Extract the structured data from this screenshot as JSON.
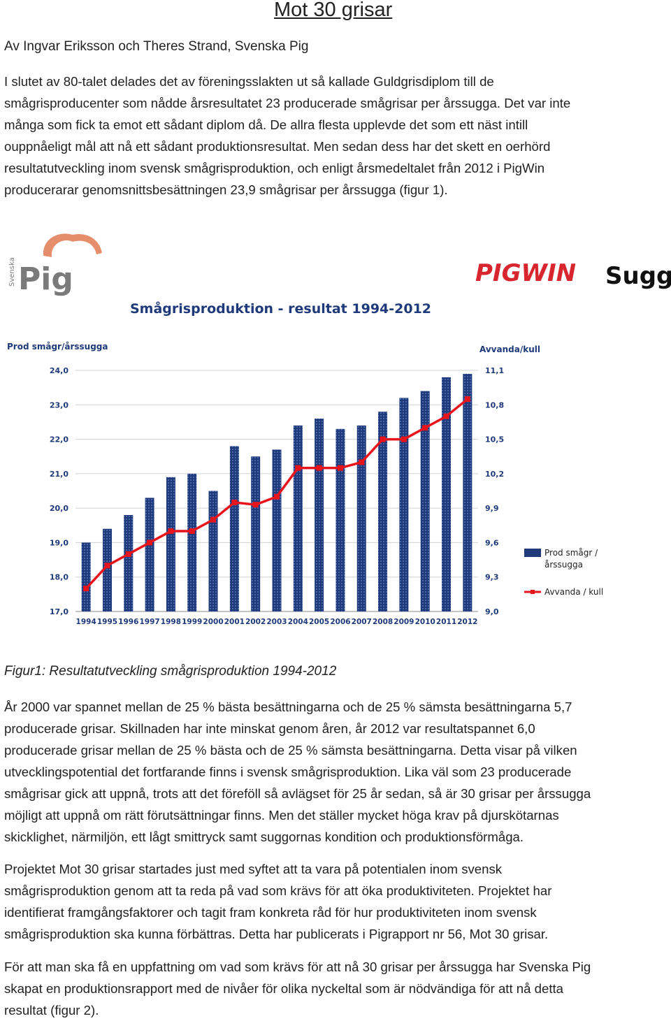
{
  "doc": {
    "title": "Mot 30 grisar",
    "authors": "Av Ingvar Eriksson och Theres Strand, Svenska Pig",
    "para1_lines": [
      "I slutet av 80-talet delades det av föreningsslakten ut så kallade Guldgrisdiplom till de",
      "smågrisproducenter som nådde årsresultatet 23 producerade smågrisar per årssugga. Det var inte",
      "många som fick ta emot ett sådant diplom då. De allra flesta upplevde det som ett näst intill",
      "ouppnåeligt mål att nå ett sådant produktionsresultat. Men sedan dess har det skett en oerhörd",
      "resultatutveckling inom svensk smågrisproduktion, och enligt årsmedeltalet från 2012 i PigWin",
      "producerarar genomsnittsbesättningen 23,9 smågrisar per årssugga (figur 1)."
    ],
    "caption": "Figur1: Resultatutveckling smågrisproduktion 1994-2012",
    "para2_lines": [
      "År 2000 var spannet mellan de 25 % bästa besättningarna och de 25 % sämsta besättningarna 5,7",
      "producerade grisar. Skillnaden har inte minskat genom åren, år 2012 var resultatspannet 6,0",
      "producerade grisar mellan de 25 % bästa och de 25 % sämsta besättningarna. Detta visar på vilken",
      "utvecklingspotential det fortfarande finns i svensk smågrisproduktion. Lika väl som 23 producerade",
      "smågrisar gick att uppnå, trots att det föreföll så avlägset för 25 år sedan, så är 30 grisar per årssugga",
      "möjligt att uppnå om rätt förutsättningar finns. Men det ställer mycket höga krav på djurskötarnas",
      "skicklighet, närmiljön, ett lågt smittryck samt suggornas kondition och produktionsförmåga."
    ],
    "para3_lines": [
      "Projektet Mot 30 grisar startades just med syftet att ta vara på potentialen inom svensk",
      "smågrisproduktion genom att ta reda på vad som krävs för att öka produktiviteten. Projektet har",
      "identifierat framgångsfaktorer och tagit fram konkreta råd för hur produktiviteten inom svensk",
      "smågrisproduktion ska kunna förbättras. Detta har publicerats i Pigrapport nr 56, Mot 30 grisar."
    ],
    "para4_lines": [
      "För att man ska få en uppfattning om vad som krävs för att nå 30 grisar per årssugga har Svenska Pig",
      "skapat en produktionsrapport med de nivåer för olika nyckeltal som är nödvändiga för att nå detta",
      "resultat (figur 2)."
    ]
  },
  "logos": {
    "svenska_pig": {
      "small": "Svenska",
      "main": "Pig",
      "color_main": "#7a7a7a",
      "color_accent": "#e07a52"
    },
    "pigwin": {
      "text": "PIGWIN",
      "color": "#d8262e"
    },
    "sugg": {
      "text": "Sugg",
      "color": "#111111"
    }
  },
  "chart_data": {
    "type": "bar",
    "title": "Smågrisproduktion - resultat 1994-2012",
    "ylabel": "Prod smågr/årssugga",
    "y2label": "Avvanda/kull",
    "categories": [
      "1994",
      "1995",
      "1996",
      "1997",
      "1998",
      "1999",
      "2000",
      "2001",
      "2002",
      "2003",
      "2004",
      "2005",
      "2006",
      "2007",
      "2008",
      "2009",
      "2010",
      "2011",
      "2012"
    ],
    "ylim": [
      17.0,
      24.0
    ],
    "yticks": [
      "17,0",
      "18,0",
      "19,0",
      "20,0",
      "21,0",
      "22,0",
      "23,0",
      "24,0"
    ],
    "y2lim": [
      9.0,
      11.1
    ],
    "y2ticks": [
      "9,0",
      "9,3",
      "9,6",
      "9,9",
      "10,2",
      "10,5",
      "10,8",
      "11,1"
    ],
    "series": [
      {
        "name": "Prod smågr / årssugga",
        "axis": "left",
        "type": "bar",
        "color": "#1f3a7a",
        "values": [
          19.0,
          19.4,
          19.8,
          20.3,
          20.9,
          21.0,
          20.5,
          21.8,
          21.5,
          21.7,
          22.4,
          22.6,
          22.3,
          22.4,
          22.8,
          23.2,
          23.4,
          23.8,
          23.9
        ]
      },
      {
        "name": "Avvanda / kull",
        "axis": "right",
        "type": "line",
        "color": "#e8141b",
        "values": [
          9.2,
          9.4,
          9.5,
          9.6,
          9.7,
          9.7,
          9.8,
          9.95,
          9.93,
          10.0,
          10.25,
          10.25,
          10.25,
          10.3,
          10.5,
          10.5,
          10.6,
          10.7,
          10.85
        ]
      }
    ],
    "legend": {
      "position": "right",
      "labels": [
        "Prod smågr /",
        "årssugga",
        "Avvanda / kull"
      ]
    },
    "grid": true
  }
}
